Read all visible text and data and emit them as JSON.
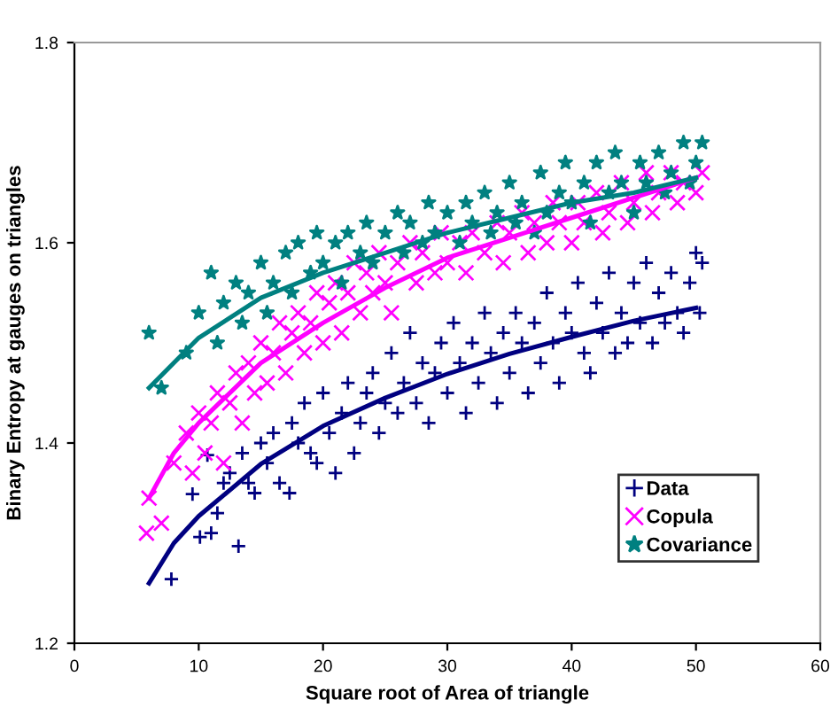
{
  "chart_data": {
    "type": "scatter",
    "xlabel": "Square root of Area of triangle",
    "ylabel": "Binary Entropy at gauges on triangles",
    "xlim": [
      0,
      60
    ],
    "ylim": [
      1.2,
      1.8
    ],
    "xticks": [
      0,
      10,
      20,
      30,
      40,
      50,
      60
    ],
    "yticks": [
      1.2,
      1.4,
      1.6,
      1.8
    ],
    "grid": false,
    "legend": "bottom right",
    "series": [
      {
        "name": "Data",
        "color": "#000080",
        "marker": "cross",
        "x": [
          7.8,
          9.5,
          10.1,
          10.7,
          11,
          11.5,
          12,
          12.5,
          13.2,
          13.5,
          14,
          14.5,
          15,
          15.5,
          16,
          16.5,
          17.3,
          17.5,
          18,
          18.5,
          19,
          19.5,
          20,
          20.5,
          21,
          21.5,
          22,
          22.5,
          23,
          23.5,
          24,
          24.5,
          25,
          25.5,
          26,
          26.5,
          27,
          27.5,
          28,
          28.5,
          29,
          29.5,
          30,
          30.5,
          31,
          31.5,
          32,
          32.5,
          33,
          33.5,
          34,
          34.5,
          35,
          35.5,
          36,
          36.5,
          37,
          37.5,
          38,
          38.5,
          39,
          39.5,
          40,
          40.5,
          41,
          41.5,
          42,
          42.5,
          43,
          43.5,
          44,
          44.5,
          45,
          45.5,
          46,
          46.5,
          47,
          47.5,
          48,
          48.5,
          49,
          49.5,
          50,
          50.3,
          50.5
        ],
        "values": [
          1.264,
          1.349,
          1.306,
          1.388,
          1.31,
          1.33,
          1.36,
          1.37,
          1.297,
          1.39,
          1.36,
          1.35,
          1.4,
          1.38,
          1.41,
          1.36,
          1.35,
          1.42,
          1.4,
          1.44,
          1.39,
          1.38,
          1.45,
          1.41,
          1.37,
          1.43,
          1.46,
          1.39,
          1.42,
          1.45,
          1.47,
          1.41,
          1.44,
          1.49,
          1.43,
          1.46,
          1.51,
          1.44,
          1.48,
          1.42,
          1.47,
          1.5,
          1.45,
          1.52,
          1.48,
          1.43,
          1.5,
          1.46,
          1.53,
          1.49,
          1.44,
          1.51,
          1.47,
          1.53,
          1.5,
          1.45,
          1.52,
          1.48,
          1.55,
          1.5,
          1.46,
          1.53,
          1.51,
          1.56,
          1.49,
          1.47,
          1.54,
          1.51,
          1.57,
          1.49,
          1.53,
          1.5,
          1.56,
          1.52,
          1.58,
          1.5,
          1.55,
          1.52,
          1.57,
          1.53,
          1.51,
          1.56,
          1.59,
          1.53,
          1.58
        ]
      },
      {
        "name": "Copula",
        "color": "#ff00ff",
        "marker": "x",
        "x": [
          6,
          5.8,
          7,
          8,
          9,
          9.5,
          10,
          10.5,
          11,
          11.5,
          12,
          12.5,
          13,
          13.5,
          14,
          14.5,
          15,
          15.5,
          16,
          16.5,
          17,
          17.5,
          18,
          18.5,
          19,
          19.5,
          20,
          20.5,
          21,
          21.5,
          22,
          22.5,
          23,
          23.5,
          24,
          24.5,
          25,
          25.5,
          26,
          27,
          27.5,
          28,
          29,
          29.5,
          30,
          31,
          31.5,
          32,
          33,
          34,
          34.5,
          35,
          36,
          36.5,
          37,
          38,
          38.5,
          39,
          40,
          40.5,
          41,
          42,
          42.5,
          43,
          44,
          44.5,
          45,
          46,
          46.5,
          47,
          48,
          48.5,
          49,
          50,
          50.5
        ],
        "values": [
          1.345,
          1.31,
          1.32,
          1.38,
          1.41,
          1.37,
          1.43,
          1.39,
          1.42,
          1.45,
          1.38,
          1.44,
          1.47,
          1.42,
          1.48,
          1.45,
          1.5,
          1.46,
          1.49,
          1.52,
          1.47,
          1.51,
          1.53,
          1.49,
          1.52,
          1.55,
          1.5,
          1.54,
          1.56,
          1.51,
          1.55,
          1.58,
          1.53,
          1.57,
          1.55,
          1.59,
          1.56,
          1.53,
          1.58,
          1.6,
          1.56,
          1.59,
          1.57,
          1.61,
          1.58,
          1.6,
          1.57,
          1.61,
          1.59,
          1.62,
          1.58,
          1.61,
          1.63,
          1.59,
          1.62,
          1.6,
          1.64,
          1.62,
          1.6,
          1.64,
          1.62,
          1.65,
          1.61,
          1.63,
          1.66,
          1.62,
          1.64,
          1.67,
          1.63,
          1.65,
          1.67,
          1.64,
          1.66,
          1.65,
          1.67
        ]
      },
      {
        "name": "Covariance",
        "color": "#008080",
        "marker": "star",
        "x": [
          6,
          7,
          9,
          10,
          11,
          11.5,
          12,
          13,
          13.5,
          14,
          15,
          15.5,
          16,
          17,
          17.5,
          18,
          19,
          19.5,
          20,
          21,
          21.5,
          22,
          23,
          23.5,
          24,
          25,
          26,
          26.5,
          27,
          28,
          28.5,
          29,
          30,
          31,
          31.5,
          32,
          33,
          33.5,
          34,
          35,
          35.5,
          36,
          37,
          37.5,
          38,
          39,
          39.5,
          40,
          41,
          41.5,
          42,
          43,
          43.5,
          44,
          45,
          45.5,
          46,
          47,
          47.5,
          48,
          49,
          49.5,
          50,
          50.5
        ],
        "values": [
          1.51,
          1.455,
          1.49,
          1.53,
          1.57,
          1.5,
          1.54,
          1.56,
          1.52,
          1.55,
          1.58,
          1.53,
          1.56,
          1.59,
          1.55,
          1.6,
          1.57,
          1.61,
          1.58,
          1.6,
          1.56,
          1.61,
          1.59,
          1.62,
          1.58,
          1.61,
          1.63,
          1.59,
          1.62,
          1.6,
          1.64,
          1.61,
          1.63,
          1.6,
          1.64,
          1.62,
          1.65,
          1.61,
          1.63,
          1.66,
          1.62,
          1.64,
          1.61,
          1.67,
          1.63,
          1.65,
          1.68,
          1.64,
          1.66,
          1.62,
          1.68,
          1.65,
          1.69,
          1.66,
          1.63,
          1.68,
          1.66,
          1.69,
          1.65,
          1.67,
          1.7,
          1.66,
          1.68,
          1.7
        ]
      },
      {
        "type": "line",
        "color": "#000080",
        "marker": "none",
        "x": [
          6,
          8,
          10,
          15,
          20,
          25,
          30,
          35,
          40,
          45,
          50
        ],
        "values": [
          1.26,
          1.3,
          1.327,
          1.379,
          1.417,
          1.445,
          1.469,
          1.489,
          1.506,
          1.522,
          1.535
        ]
      },
      {
        "type": "line",
        "color": "#ff00ff",
        "marker": "none",
        "x": [
          6,
          8,
          10,
          15,
          20,
          25,
          30,
          35,
          40,
          45,
          50
        ],
        "values": [
          1.345,
          1.39,
          1.42,
          1.48,
          1.52,
          1.555,
          1.585,
          1.605,
          1.625,
          1.645,
          1.665
        ]
      },
      {
        "type": "line",
        "color": "#008080",
        "marker": "none",
        "x": [
          6,
          8,
          10,
          15,
          20,
          25,
          30,
          35,
          40,
          45,
          50
        ],
        "values": [
          1.455,
          1.48,
          1.505,
          1.545,
          1.57,
          1.59,
          1.61,
          1.625,
          1.64,
          1.65,
          1.665
        ]
      }
    ]
  }
}
